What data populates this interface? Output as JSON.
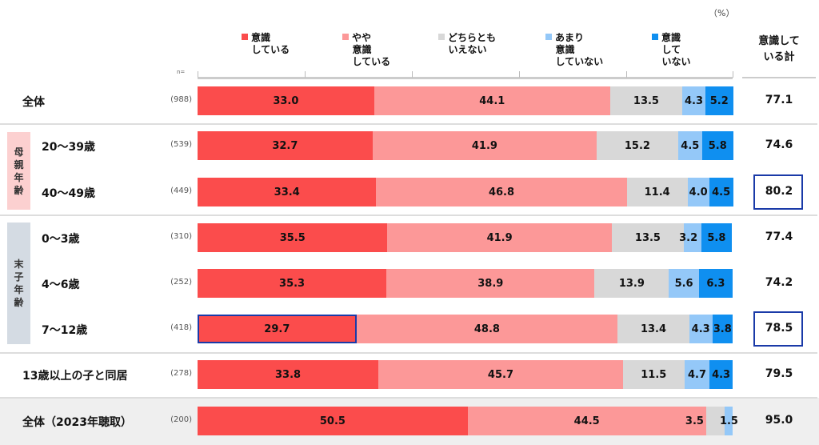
{
  "chart_data": {
    "type": "bar",
    "orientation": "horizontal-stacked",
    "unit_label": "（%）",
    "n_label": "n=",
    "total_header": "意識して\nいる計",
    "legend": [
      {
        "name": "意識\nしている",
        "color": "#fb4c4c"
      },
      {
        "name": "やや\n意識\nしている",
        "color": "#fc9898"
      },
      {
        "name": "どちらとも\nいえない",
        "color": "#d8d8d8"
      },
      {
        "name": "あまり\n意識\nしていない",
        "color": "#94c8f8"
      },
      {
        "name": "意識\nして\nいない",
        "color": "#0f8ff0"
      }
    ],
    "groups": [
      {
        "label": "母\n親\n年\n齢",
        "color": "#fcd0d0"
      },
      {
        "label": "末\n子\n年\n齢",
        "color": "#d4dbe3"
      }
    ],
    "xlim": [
      0,
      100
    ],
    "rows": [
      {
        "label": "全体",
        "n": "(988)",
        "values": [
          33.0,
          44.1,
          13.5,
          4.3,
          5.2
        ],
        "total": "77.1"
      },
      {
        "label": "20～39歳",
        "n": "(539)",
        "values": [
          32.7,
          41.9,
          15.2,
          4.5,
          5.8
        ],
        "total": "74.6"
      },
      {
        "label": "40～49歳",
        "n": "(449)",
        "values": [
          33.4,
          46.8,
          11.4,
          4.0,
          4.5
        ],
        "total": "80.2",
        "highlight_total": true
      },
      {
        "label": "0～3歳",
        "n": "(310)",
        "values": [
          35.5,
          41.9,
          13.5,
          3.2,
          5.8
        ],
        "total": "77.4"
      },
      {
        "label": "4～6歳",
        "n": "(252)",
        "values": [
          35.3,
          38.9,
          13.9,
          5.6,
          6.3
        ],
        "total": "74.2"
      },
      {
        "label": "7～12歳",
        "n": "(418)",
        "values": [
          29.7,
          48.8,
          13.4,
          4.3,
          3.8
        ],
        "total": "78.5",
        "highlight_total": true,
        "highlight_first": true
      },
      {
        "label": "13歳以上の子と同居",
        "n": "(278)",
        "values": [
          33.8,
          45.7,
          11.5,
          4.7,
          4.3
        ],
        "total": "79.5"
      },
      {
        "label": "全体（2023年聴取）",
        "n": "(200)",
        "values": [
          50.5,
          44.5,
          3.5,
          1.5,
          0
        ],
        "total": "95.0"
      }
    ]
  }
}
